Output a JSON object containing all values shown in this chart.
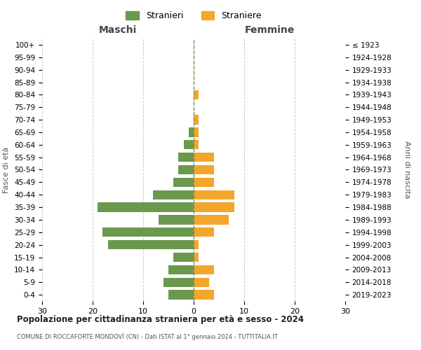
{
  "age_groups": [
    "0-4",
    "5-9",
    "10-14",
    "15-19",
    "20-24",
    "25-29",
    "30-34",
    "35-39",
    "40-44",
    "45-49",
    "50-54",
    "55-59",
    "60-64",
    "65-69",
    "70-74",
    "75-79",
    "80-84",
    "85-89",
    "90-94",
    "95-99",
    "100+"
  ],
  "birth_years": [
    "2019-2023",
    "2014-2018",
    "2009-2013",
    "2004-2008",
    "1999-2003",
    "1994-1998",
    "1989-1993",
    "1984-1988",
    "1979-1983",
    "1974-1978",
    "1969-1973",
    "1964-1968",
    "1959-1963",
    "1954-1958",
    "1949-1953",
    "1944-1948",
    "1939-1943",
    "1934-1938",
    "1929-1933",
    "1924-1928",
    "≤ 1923"
  ],
  "maschi": [
    5,
    6,
    5,
    4,
    17,
    18,
    7,
    19,
    8,
    4,
    3,
    3,
    2,
    1,
    0,
    0,
    0,
    0,
    0,
    0,
    0
  ],
  "femmine": [
    4,
    3,
    4,
    1,
    1,
    4,
    7,
    8,
    8,
    4,
    4,
    4,
    1,
    1,
    1,
    0,
    1,
    0,
    0,
    0,
    0
  ],
  "color_maschi": "#6a994e",
  "color_femmine": "#f4a62a",
  "title": "Popolazione per cittadinanza straniera per età e sesso - 2024",
  "subtitle": "COMUNE DI ROCCAFORTE MONDOVÌ (CN) - Dati ISTAT al 1° gennaio 2024 - TUTTITALIA.IT",
  "label_maschi": "Stranieri",
  "label_femmine": "Straniere",
  "xlabel_left": "Maschi",
  "xlabel_right": "Femmine",
  "ylabel_left": "Fasce di età",
  "ylabel_right": "Anni di nascita",
  "xlim": 30,
  "background_color": "#ffffff",
  "grid_color": "#cccccc"
}
